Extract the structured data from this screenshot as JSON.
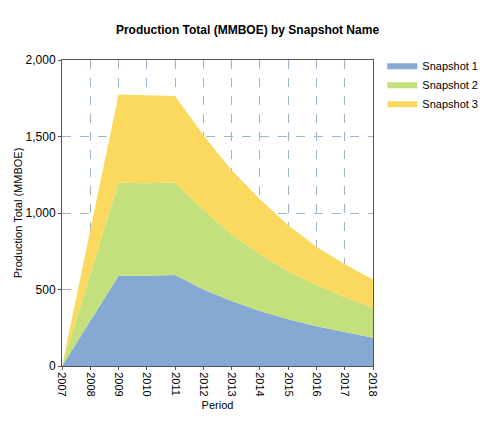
{
  "chart_data": {
    "type": "area",
    "title": "Production Total (MMBOE) by Snapshot Name",
    "x_label": "Period",
    "y_label": "Production Total (MMBOE)",
    "x": [
      2007,
      2008,
      2009,
      2010,
      2011,
      2012,
      2013,
      2014,
      2015,
      2016,
      2017,
      2018
    ],
    "series": [
      {
        "name": "Snapshot 1",
        "color": "#86a9d3",
        "values": [
          0,
          295,
          590,
          590,
          595,
          500,
          425,
          360,
          305,
          260,
          220,
          185
        ]
      },
      {
        "name": "Snapshot 2",
        "color": "#c3e07c",
        "values": [
          0,
          300,
          610,
          605,
          605,
          520,
          435,
          370,
          315,
          270,
          230,
          195
        ]
      },
      {
        "name": "Snapshot 3",
        "color": "#fad95e",
        "values": [
          0,
          290,
          575,
          575,
          565,
          490,
          420,
          360,
          300,
          250,
          215,
          185
        ]
      }
    ],
    "stacked": true,
    "xlim": [
      2007,
      2018
    ],
    "xticks": [
      2007,
      2008,
      2009,
      2010,
      2011,
      2012,
      2013,
      2014,
      2015,
      2016,
      2017,
      2018
    ],
    "ylim": [
      0,
      2000
    ],
    "yticks": [
      0,
      500,
      {
        "value": 1000,
        "label": "1,000"
      },
      {
        "value": 1500,
        "label": "1,500"
      },
      {
        "value": 2000,
        "label": "2,000"
      }
    ],
    "grid": true,
    "legend": "right"
  }
}
